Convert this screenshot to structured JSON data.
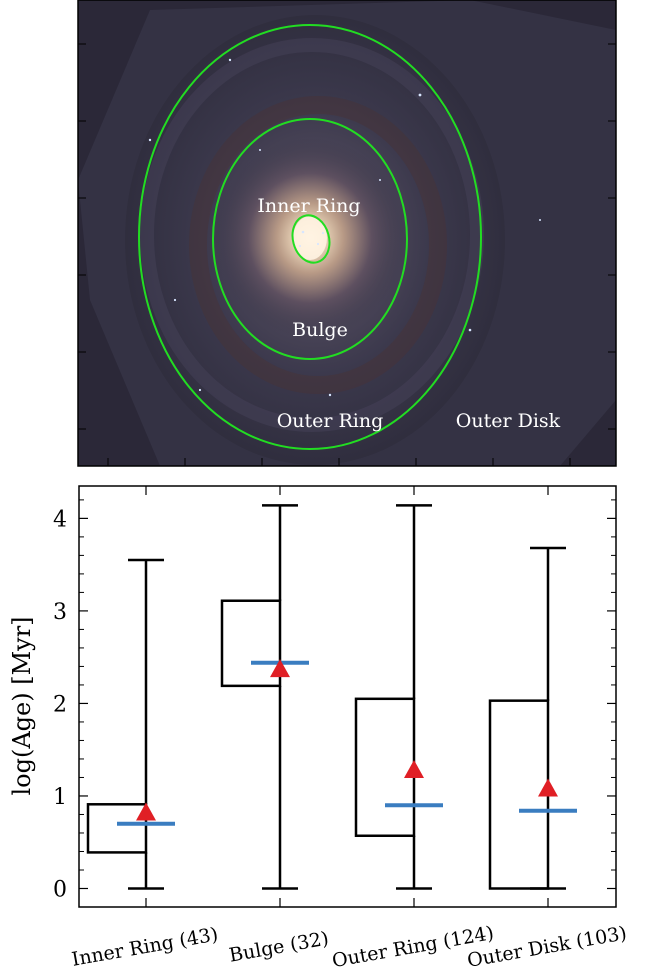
{
  "image_panel": {
    "labels": {
      "inner_ring": "Inner Ring",
      "bulge": "Bulge",
      "outer_ring": "Outer Ring",
      "outer_disk": "Outer Disk"
    },
    "colors": {
      "ellipse": "#22dd22",
      "background": "#2b2838",
      "label": "#ffffff"
    }
  },
  "chart_data": {
    "type": "box",
    "ylabel": "log(Age) [Myr]",
    "ylim": [
      -0.2,
      4.35
    ],
    "yticks": [
      0,
      1,
      2,
      3,
      4
    ],
    "categories": [
      "Inner Ring (43)",
      "Bulge (32)",
      "Outer Ring (124)",
      "Outer Disk (103)"
    ],
    "boxes": [
      {
        "whisker_low": 0.0,
        "q1": 0.39,
        "median": 0.7,
        "q3": 0.91,
        "whisker_high": 3.55,
        "mean": 0.81
      },
      {
        "whisker_low": 0.0,
        "q1": 2.19,
        "median": 2.44,
        "q3": 3.11,
        "whisker_high": 4.14,
        "mean": 2.36
      },
      {
        "whisker_low": 0.0,
        "q1": 0.57,
        "median": 0.9,
        "q3": 2.05,
        "whisker_high": 4.14,
        "mean": 1.27
      },
      {
        "whisker_low": 0.0,
        "q1": 0.0,
        "median": 0.84,
        "q3": 2.03,
        "whisker_high": 3.68,
        "mean": 1.07
      }
    ],
    "grid": false,
    "colors": {
      "box": "#000000",
      "median": "#3a7dc0",
      "mean": "#e01f25"
    }
  }
}
